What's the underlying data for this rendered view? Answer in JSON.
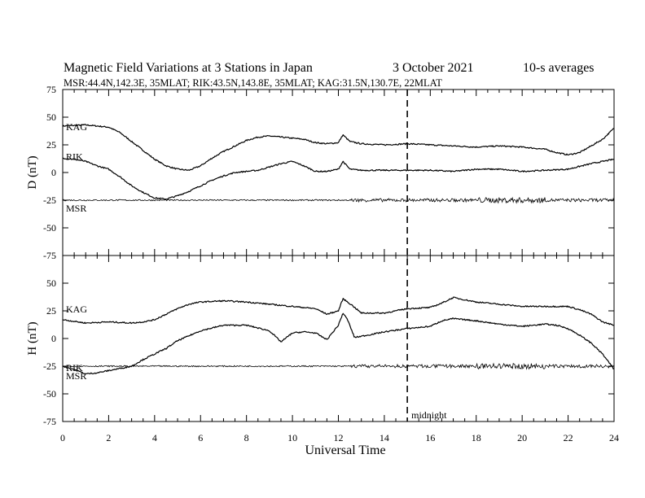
{
  "title": {
    "main": "Magnetic Field Variations at 3 Stations in Japan",
    "date": "3   October 2021",
    "averages": "10-s averages",
    "stations": "MSR:44.4N,142.3E, 35MLAT;  RIK:43.5N,143.8E, 35MLAT;  KAG:31.5N,130.7E, 22MLAT"
  },
  "chart_data": [
    {
      "type": "line",
      "panel": "D",
      "ylabel": "D (nT)",
      "ylim": [
        -75,
        75
      ],
      "yticks": [
        75,
        50,
        25,
        0,
        -25,
        -50,
        -75
      ],
      "xlim": [
        0,
        24
      ],
      "xticks": [
        0,
        2,
        4,
        6,
        8,
        10,
        12,
        14,
        16,
        18,
        20,
        22,
        24
      ],
      "series": [
        {
          "name": "KAG",
          "x": [
            0,
            1,
            2,
            2.5,
            3,
            3.5,
            4,
            4.5,
            5,
            5.5,
            6,
            6.5,
            7,
            7.5,
            8,
            8.5,
            9,
            9.5,
            10,
            10.5,
            11,
            11.5,
            12,
            12.2,
            12.5,
            13,
            14,
            15,
            16,
            17,
            18,
            19,
            20,
            21,
            21.5,
            22,
            22.5,
            23,
            23.5,
            24
          ],
          "y": [
            42,
            43,
            41,
            36,
            28,
            20,
            12,
            6,
            3,
            2,
            6,
            13,
            19,
            24,
            29,
            32,
            33,
            32,
            31,
            30,
            27,
            26,
            27,
            34,
            28,
            26,
            25,
            26,
            25,
            24,
            23,
            24,
            23,
            21,
            18,
            16,
            18,
            24,
            30,
            40
          ]
        },
        {
          "name": "RIK",
          "x": [
            0,
            0.5,
            1,
            1.5,
            2,
            2.5,
            3,
            3.5,
            4,
            4.5,
            5,
            5.5,
            6,
            6.5,
            7,
            7.5,
            8,
            8.5,
            9,
            9.5,
            10,
            10.5,
            11,
            11.5,
            12,
            12.2,
            12.5,
            13,
            14,
            15,
            16,
            17,
            18,
            19,
            20,
            21,
            22,
            23,
            24
          ],
          "y": [
            13,
            12,
            10,
            6,
            3,
            -4,
            -12,
            -18,
            -23,
            -24,
            -21,
            -17,
            -12,
            -7,
            -3,
            0,
            1,
            2,
            5,
            8,
            10,
            6,
            1,
            1,
            3,
            10,
            3,
            2,
            2,
            2,
            2,
            1,
            3,
            3,
            1,
            2,
            3,
            8,
            12
          ]
        },
        {
          "name": "MSR",
          "x": [
            0,
            12.5,
            18,
            20,
            22,
            24
          ],
          "y": [
            -25,
            -25,
            -25,
            -25,
            -25,
            -25
          ],
          "noise_from_ut": 12.5
        }
      ]
    },
    {
      "type": "line",
      "panel": "H",
      "ylabel": "H (nT)",
      "ylim": [
        -75,
        75
      ],
      "yticks": [
        75,
        50,
        25,
        0,
        -25,
        -50,
        -75
      ],
      "xlim": [
        0,
        24
      ],
      "xticks": [
        0,
        2,
        4,
        6,
        8,
        10,
        12,
        14,
        16,
        18,
        20,
        22,
        24
      ],
      "xlabel": "Universal Time",
      "series": [
        {
          "name": "KAG",
          "x": [
            0,
            1,
            2,
            3,
            3.5,
            4,
            4.5,
            5,
            5.5,
            6,
            7,
            8,
            9,
            10,
            11,
            11.5,
            12,
            12.2,
            12.6,
            13,
            14,
            15,
            16,
            16.5,
            17,
            17.5,
            18,
            19,
            20,
            21,
            22,
            22.5,
            23,
            23.5,
            24
          ],
          "y": [
            17,
            14,
            15,
            14,
            15,
            17,
            22,
            27,
            31,
            33,
            34,
            33,
            31,
            29,
            27,
            22,
            25,
            36,
            30,
            23,
            23,
            27,
            28,
            32,
            37,
            35,
            33,
            31,
            29,
            29,
            29,
            26,
            22,
            15,
            12
          ]
        },
        {
          "name": "RIK",
          "x": [
            0,
            0.5,
            1,
            1.5,
            2,
            2.5,
            3,
            3.5,
            4,
            4.5,
            5,
            6,
            7,
            8,
            9,
            9.5,
            10,
            10.5,
            11,
            11.5,
            12,
            12.2,
            12.4,
            12.7,
            13,
            14,
            15,
            16,
            16.5,
            17,
            18,
            19,
            20,
            21,
            21.5,
            22,
            22.5,
            23,
            23.5,
            24
          ],
          "y": [
            -25,
            -28,
            -32,
            -31,
            -29,
            -27,
            -25,
            -19,
            -14,
            -9,
            -2,
            7,
            12,
            12,
            7,
            -3,
            5,
            6,
            5,
            -1,
            12,
            23,
            17,
            1,
            2,
            6,
            9,
            11,
            16,
            18,
            16,
            13,
            11,
            13,
            12,
            9,
            3,
            -4,
            -14,
            -28
          ]
        },
        {
          "name": "MSR",
          "x": [
            0,
            12.5,
            18,
            20,
            22,
            24
          ],
          "y": [
            -25,
            -25,
            -25,
            -25,
            -25,
            -25
          ],
          "noise_from_ut": 12.5
        }
      ]
    }
  ],
  "midnight": {
    "ut": 15,
    "label": "midnight"
  },
  "style": {
    "line_color": "#000000",
    "background": "#ffffff"
  }
}
